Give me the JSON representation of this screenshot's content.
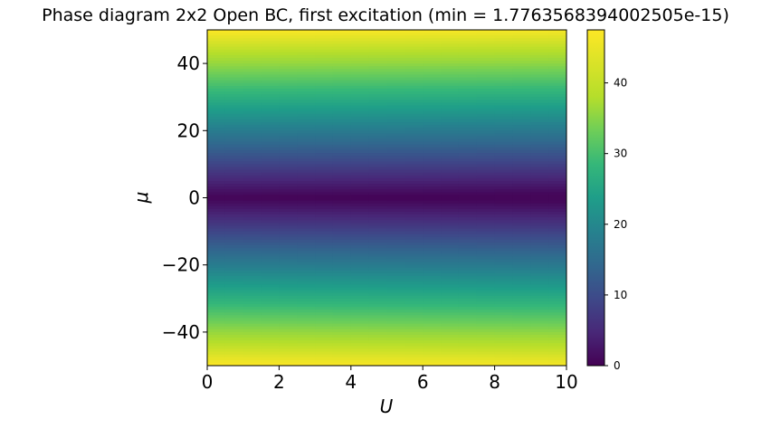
{
  "chart_data": {
    "type": "heatmap",
    "title": "Phase diagram 2x2 Open BC, first excitation (min = 1.7763568394002505e-15)",
    "xlabel": "U",
    "ylabel": "μ",
    "xlim": [
      0,
      10
    ],
    "ylim": [
      -50,
      50
    ],
    "x_ticks": [
      0,
      2,
      4,
      6,
      8,
      10
    ],
    "y_ticks": [
      40,
      20,
      0,
      -20,
      -40
    ],
    "x_tick_labels": [
      "0",
      "2",
      "4",
      "6",
      "8",
      "10"
    ],
    "y_tick_labels": [
      "40",
      "20",
      "0",
      "−20",
      "−40"
    ],
    "colormap": "viridis",
    "colorbar": {
      "min": 0,
      "max": 47.5,
      "ticks": [
        0,
        10,
        20,
        30,
        40
      ],
      "tick_labels": [
        "0",
        "10",
        "20",
        "30",
        "40"
      ]
    },
    "field_description_values": {
      "mu_samples": [
        50,
        40,
        30,
        20,
        10,
        5,
        0,
        -5,
        -10,
        -20,
        -30,
        -40,
        -50
      ],
      "value_at_samples": [
        47.5,
        40,
        30,
        20,
        10,
        5,
        0.5,
        5,
        10,
        20,
        30,
        40,
        47.5
      ],
      "band_tilt_per_U": 0.5
    }
  }
}
